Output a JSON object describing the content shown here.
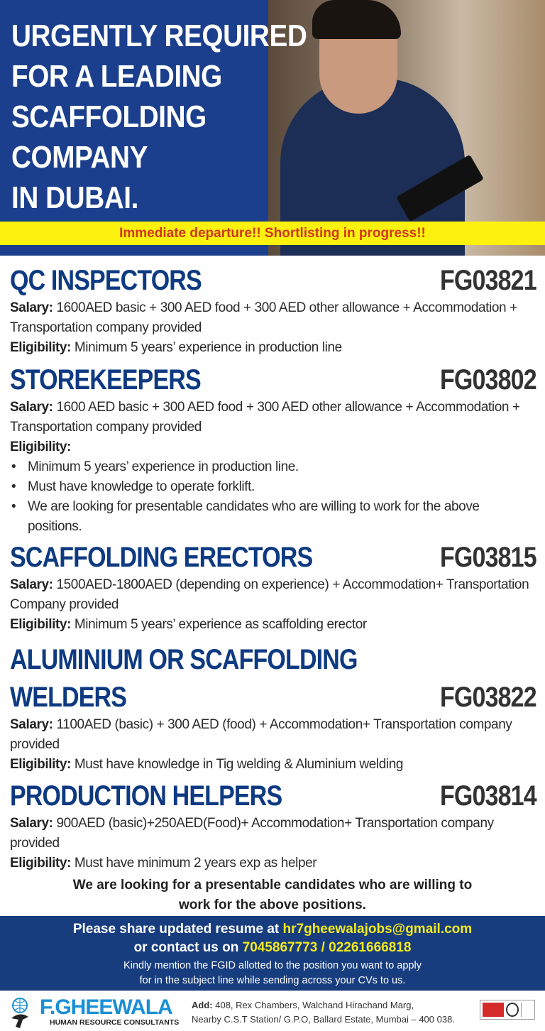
{
  "headline": [
    "URGENTLY REQUIRED",
    "FOR A LEADING",
    "SCAFFOLDING",
    "COMPANY",
    "IN DUBAI."
  ],
  "banner": "Immediate departure!!  Shortlisting in progress!!",
  "labels": {
    "salary": "Salary:",
    "eligibility": "Eligibility:"
  },
  "jobs": [
    {
      "title": "QC INSPECTORS",
      "code": "FG03821",
      "salary": "1600AED basic + 300 AED food + 300 AED other allowance + Accommodation + Transportation company provided",
      "eligibility": "Minimum 5 years’ experience in production line"
    },
    {
      "title": "STOREKEEPERS",
      "code": "FG03802",
      "salary": "1600 AED basic + 300 AED food + 300 AED other allowance + Accommodation + Transportation company provided",
      "eligibility_items": [
        "Minimum 5 years’ experience in production line.",
        "Must have knowledge to operate forklift.",
        "We are looking for  presentable candidates who are willing to work for the above positions."
      ]
    },
    {
      "title": "SCAFFOLDING ERECTORS",
      "code": "FG03815",
      "salary": "1500AED-1800AED (depending on experience) + Accommodation+ Transportation Company provided",
      "eligibility": "Minimum 5 years’ experience as scaffolding erector"
    },
    {
      "title": "ALUMINIUM OR SCAFFOLDING",
      "title2": "WELDERS",
      "code": "FG03822",
      "salary": "1100AED (basic) + 300 AED (food) + Accommodation+ Transportation company provided",
      "eligibility": "Must have knowledge in Tig welding & Aluminium welding"
    },
    {
      "title": "PRODUCTION HELPERS",
      "code": "FG03814",
      "salary": "900AED (basic)+250AED(Food)+ Accommodation+ Transportation company provided",
      "eligibility": "Must have minimum 2 years exp as helper"
    }
  ],
  "note": [
    "We are looking for a presentable candidates who are willing to",
    "work for the above positions."
  ],
  "contact": {
    "share": "Please share updated resume at",
    "email": "hr7gheewalajobs@gmail.com",
    "contact": "or contact us on",
    "phones": "7045867773 / 02261666818",
    "instr1": "Kindly mention the FGID allotted to the position you want to apply",
    "instr2": "for in the subject line while sending across your CVs to us."
  },
  "company": {
    "name_a": "F.",
    "name_b": "GHEEWALA",
    "tagline": "HUMAN RESOURCE CONSULTANTS",
    "addr_label": "Add:",
    "addr1": "408, Rex Chambers, Walchand Hirachand Marg,",
    "addr2": "Nearby C.S.T Station/ G.P.O, Ballard Estate, Mumbai – 400 038."
  },
  "colors": {
    "blue": "#1b3f8c",
    "yellow": "#fdf20d",
    "red": "#d1361c",
    "title": "#0e3a82"
  }
}
